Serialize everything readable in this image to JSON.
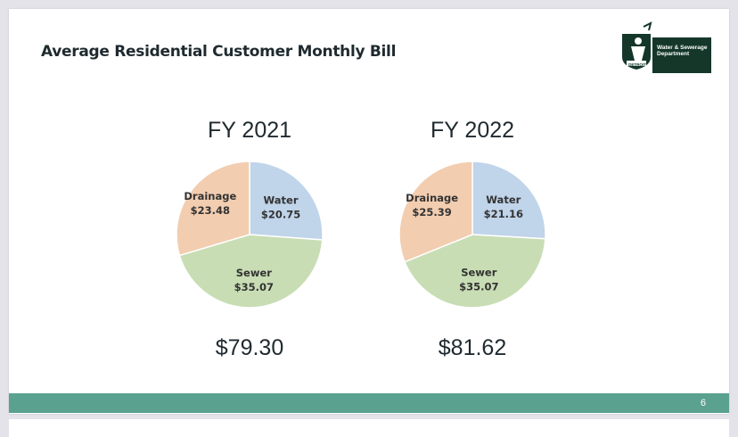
{
  "slide": {
    "title": "Average Residential Customer Monthly Bill",
    "page_number": "6",
    "logo": {
      "text_line1": "Water & Sewerage",
      "text_line2": "Department",
      "city": "DETROIT"
    }
  },
  "colors": {
    "water": "#c0d4ea",
    "sewer": "#c8ddb4",
    "drainage": "#f2cdb0",
    "footer": "#5aa190"
  },
  "chart_data": [
    {
      "type": "pie",
      "title": "FY 2021",
      "total": "$79.30",
      "labels": [
        {
          "name": "Water",
          "value": "$20.75"
        },
        {
          "name": "Sewer",
          "value": "$35.07"
        },
        {
          "name": "Drainage",
          "value": "$23.48"
        }
      ],
      "slices": [
        {
          "name": "Water",
          "value": 20.75
        },
        {
          "name": "Sewer",
          "value": 35.07
        },
        {
          "name": "Drainage",
          "value": 23.48
        }
      ]
    },
    {
      "type": "pie",
      "title": "FY 2022",
      "total": "$81.62",
      "labels": [
        {
          "name": "Water",
          "value": "$21.16"
        },
        {
          "name": "Sewer",
          "value": "$35.07"
        },
        {
          "name": "Drainage",
          "value": "$25.39"
        }
      ],
      "slices": [
        {
          "name": "Water",
          "value": 21.16
        },
        {
          "name": "Sewer",
          "value": 35.07
        },
        {
          "name": "Drainage",
          "value": 25.39
        }
      ]
    }
  ]
}
